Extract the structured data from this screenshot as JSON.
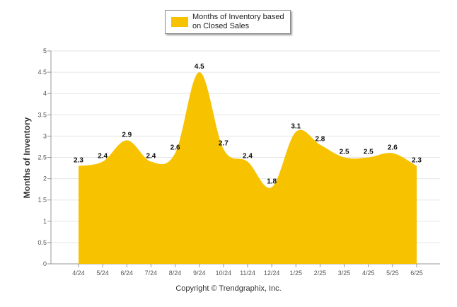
{
  "chart_data": {
    "type": "area",
    "title": "",
    "xlabel": "",
    "ylabel": "Months of Inventory",
    "categories": [
      "4/24",
      "5/24",
      "6/24",
      "7/24",
      "8/24",
      "9/24",
      "10/24",
      "11/24",
      "12/24",
      "1/25",
      "2/25",
      "3/25",
      "4/25",
      "5/25",
      "6/25"
    ],
    "series": [
      {
        "name": "Months of Inventory based on Closed Sales",
        "values": [
          2.3,
          2.4,
          2.9,
          2.4,
          2.6,
          4.5,
          2.7,
          2.4,
          1.8,
          3.1,
          2.8,
          2.5,
          2.5,
          2.6,
          2.3
        ],
        "labels": [
          "2.3",
          "2.4",
          "2.9",
          "2.4",
          "2.6",
          "4.5",
          "2.7",
          "2.4",
          "1.8",
          "3.1",
          "2.8",
          "2.5",
          "2.5",
          "2.6",
          "2.3"
        ],
        "color": "#f7c200"
      }
    ],
    "ylim": [
      0,
      5
    ],
    "yticks": [
      "0",
      "0.5",
      "1",
      "1.5",
      "2",
      "2.5",
      "3",
      "3.5",
      "4",
      "4.5",
      "5"
    ],
    "grid": true,
    "legend_position": "top-center"
  },
  "legend": {
    "line1": "Months of Inventory based",
    "line2": "on Closed Sales"
  },
  "footer": {
    "copyright": "Copyright © Trendgraphix, Inc."
  }
}
